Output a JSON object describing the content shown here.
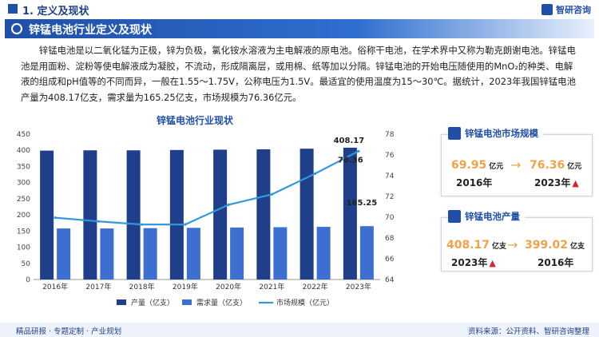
{
  "header": {
    "section_title": "1. 定义及现状",
    "brand": "智研咨询"
  },
  "banner": {
    "title": "锌锰电池行业定义及现状"
  },
  "paragraph": "锌锰电池是以二氧化锰为正极，锌为负极，氯化铵水溶液为主电解液的原电池。俗称干电池，在学术界中又称为勒克朗谢电池。锌锰电池是用面粉、淀粉等使电解液成为凝胶，不流动，形成隔离层，或用棉、纸等加以分隔。锌锰电池的开始电压随使用的MnO₂的种类、电解液的组成和pH值等的不同而异，一般在1.55～1.75V，公称电压为1.5V。最适宜的使用温度为15～30℃。据统计，2023年我国锌锰电池产量为408.17亿支，需求量为165.25亿支，市场规模为76.36亿元。",
  "chart_data": {
    "type": "bar",
    "title": "锌锰电池行业现状",
    "categories": [
      "2016年",
      "2017年",
      "2018年",
      "2019年",
      "2020年",
      "2021年",
      "2022年",
      "2023年"
    ],
    "series": [
      {
        "name": "产量（亿支）",
        "kind": "bar",
        "axis": "left",
        "color": "#1f3f8a",
        "values": [
          399.02,
          400,
          400,
          401,
          402,
          403,
          405,
          408.17
        ]
      },
      {
        "name": "需求量（亿支）",
        "kind": "bar",
        "axis": "left",
        "color": "#3d6fd1",
        "values": [
          158,
          158,
          159,
          160,
          161,
          162,
          163,
          165.25
        ]
      },
      {
        "name": "市场规模（亿元）",
        "kind": "line",
        "axis": "right",
        "color": "#3399dd",
        "values": [
          69.95,
          69.6,
          69.3,
          69.3,
          71.2,
          72.2,
          74.2,
          76.36
        ]
      }
    ],
    "left_axis": {
      "min": 0,
      "max": 450,
      "ticks": [
        0,
        50,
        100,
        150,
        200,
        250,
        300,
        350,
        400,
        450
      ]
    },
    "right_axis": {
      "min": 64,
      "max": 78,
      "ticks": [
        64,
        66,
        68,
        70,
        72,
        74,
        76,
        78
      ]
    },
    "data_labels": {
      "production_2023": "408.17",
      "market_2023": "76.36",
      "demand_2023": "165.25"
    },
    "legend": {
      "position": "bottom"
    },
    "grid": false
  },
  "market_card": {
    "title": "锌锰电池市场规模",
    "from": {
      "value": "69.95",
      "unit": "亿元",
      "year": "2016年"
    },
    "to": {
      "value": "76.36",
      "unit": "亿元",
      "year": "2023年"
    },
    "arrow_icon": "right-arrow-icon",
    "trend_icon": "up-arrow-icon"
  },
  "production_card": {
    "title": "锌锰电池产量",
    "from": {
      "value": "408.17",
      "unit": "亿支",
      "year": "2023年"
    },
    "to": {
      "value": "399.02",
      "unit": "亿支",
      "year": "2016年"
    },
    "arrow_icon": "right-arrow-icon",
    "trend_icon": "up-arrow-icon"
  },
  "footer": {
    "left": "精品研报 · 专题定制 · 产业规划",
    "right": "资料来源：公开资料、智研咨询整理"
  }
}
